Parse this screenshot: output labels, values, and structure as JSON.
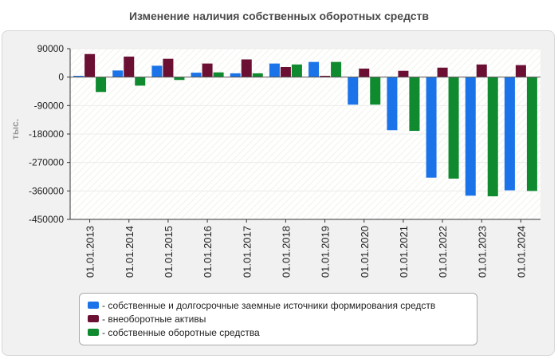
{
  "chart_data": {
    "type": "bar",
    "title": "Изменение наличия собственных оборотных средств",
    "ylabel": "тыс.",
    "xlabel": "",
    "ylim": [
      -450000,
      90000
    ],
    "yticks": [
      90000,
      0,
      -90000,
      -180000,
      -270000,
      -360000,
      -450000
    ],
    "ytick_labels": [
      "90000",
      "0",
      "-90000",
      "-180000",
      "-270000",
      "-360000",
      "-450000"
    ],
    "categories": [
      "01.01.2013",
      "01.01.2014",
      "01.01.2015",
      "01.01.2016",
      "01.01.2017",
      "01.01.2018",
      "01.01.2019",
      "01.01.2020",
      "01.01.2021",
      "01.01.2022",
      "01.01.2023",
      "01.01.2024"
    ],
    "series": [
      {
        "name": "- собственные и долгосрочные заемные источники формирования средств",
        "color": "#1a73e8",
        "values": [
          4000,
          21000,
          36000,
          14000,
          12000,
          43000,
          48000,
          -87000,
          -168000,
          -318000,
          -375000,
          -358000
        ]
      },
      {
        "name": "- внеоборотные активы",
        "color": "#6b0f33",
        "values": [
          73000,
          65000,
          58000,
          43000,
          56000,
          32000,
          4000,
          27000,
          20000,
          30000,
          40000,
          38000
        ]
      },
      {
        "name": "- собственные оборотные средства",
        "color": "#0f8a2f",
        "values": [
          -47000,
          -27000,
          -9000,
          15000,
          12000,
          40000,
          48000,
          -87000,
          -170000,
          -321000,
          -377000,
          -360000
        ]
      }
    ],
    "grid": false,
    "legend_position": "bottom"
  }
}
